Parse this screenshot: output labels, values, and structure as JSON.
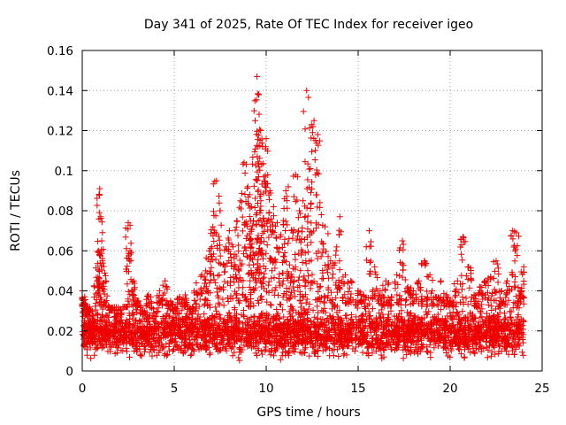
{
  "chart_data": {
    "type": "scatter",
    "title": "Day 341 of 2025, Rate Of TEC Index for receiver igeo",
    "xlabel": "GPS time / hours",
    "ylabel": "ROTI / TECUs",
    "xlim": [
      0,
      25
    ],
    "ylim": [
      0,
      0.16
    ],
    "xticks": [
      0,
      5,
      10,
      15,
      20,
      25
    ],
    "xtick_labels": [
      "0",
      "5",
      "10",
      "15",
      "20",
      "25"
    ],
    "yticks": [
      0,
      0.02,
      0.04,
      0.06,
      0.08,
      0.1,
      0.12,
      0.14,
      0.16
    ],
    "ytick_labels": [
      "0",
      "0.02",
      "0.04",
      "0.06",
      "0.08",
      "0.1",
      "0.12",
      "0.14",
      "0.16"
    ],
    "grid": true,
    "marker": "plus",
    "color": "#ee0000",
    "series": [
      {
        "x": [
          0.0,
          0.1,
          0.2,
          0.3,
          0.5,
          0.8,
          0.9,
          0.95,
          1.0,
          1.1,
          1.3,
          1.6,
          1.8,
          2.0,
          2.3,
          2.5,
          2.6,
          2.8,
          3.0,
          3.3,
          3.6,
          3.9,
          4.2,
          4.5,
          4.8,
          5.0,
          5.3,
          5.6,
          5.9,
          6.2,
          6.5,
          6.7,
          6.9,
          7.1,
          7.3,
          7.5,
          7.8,
          8.0,
          8.2,
          8.4,
          8.6,
          8.8,
          9.0,
          9.1,
          9.2,
          9.3,
          9.4,
          9.5,
          9.6,
          9.7,
          9.8,
          9.9,
          10.0,
          10.2,
          10.4,
          10.6,
          10.8,
          11.0,
          11.2,
          11.4,
          11.6,
          11.8,
          12.0,
          12.2,
          12.4,
          12.6,
          12.8,
          13.0,
          13.2,
          13.5,
          13.8,
          14.0,
          14.3,
          14.6,
          15.0,
          15.3,
          15.6,
          15.9,
          16.2,
          16.5,
          16.8,
          17.1,
          17.4,
          17.7,
          18.0,
          18.3,
          18.6,
          18.9,
          19.2,
          19.5,
          19.8,
          20.1,
          20.4,
          20.7,
          21.0,
          21.3,
          21.6,
          21.9,
          22.2,
          22.5,
          22.8,
          23.1,
          23.4,
          23.6,
          23.8,
          24.0
        ],
        "y": [
          0.04,
          0.033,
          0.028,
          0.022,
          0.018,
          0.045,
          0.06,
          0.091,
          0.077,
          0.055,
          0.045,
          0.03,
          0.027,
          0.025,
          0.032,
          0.074,
          0.06,
          0.045,
          0.035,
          0.028,
          0.038,
          0.025,
          0.04,
          0.045,
          0.035,
          0.03,
          0.037,
          0.038,
          0.03,
          0.044,
          0.048,
          0.05,
          0.06,
          0.072,
          0.095,
          0.08,
          0.062,
          0.07,
          0.062,
          0.075,
          0.085,
          0.104,
          0.092,
          0.088,
          0.082,
          0.075,
          0.125,
          0.147,
          0.138,
          0.12,
          0.112,
          0.095,
          0.116,
          0.09,
          0.082,
          0.074,
          0.068,
          0.086,
          0.092,
          0.07,
          0.098,
          0.08,
          0.085,
          0.14,
          0.101,
          0.125,
          0.118,
          0.078,
          0.072,
          0.055,
          0.06,
          0.077,
          0.048,
          0.045,
          0.04,
          0.038,
          0.07,
          0.052,
          0.04,
          0.045,
          0.037,
          0.048,
          0.065,
          0.042,
          0.04,
          0.045,
          0.055,
          0.048,
          0.037,
          0.045,
          0.038,
          0.035,
          0.045,
          0.067,
          0.052,
          0.038,
          0.042,
          0.045,
          0.047,
          0.055,
          0.04,
          0.045,
          0.07,
          0.069,
          0.04,
          0.052
        ]
      }
    ],
    "background_band": {
      "y_min": 0.004,
      "y_max": 0.032,
      "typical_value": 0.015,
      "x_range": [
        0,
        24
      ]
    }
  }
}
